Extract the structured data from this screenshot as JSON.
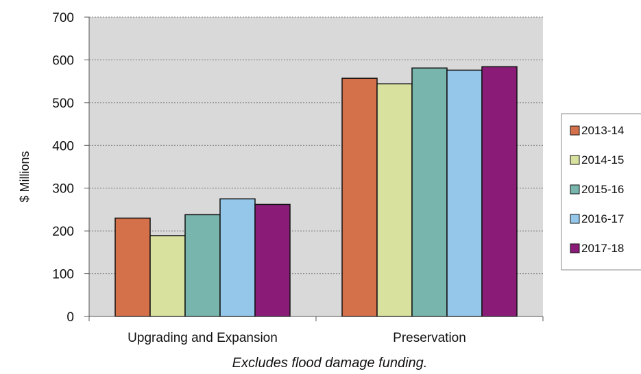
{
  "chart_data": {
    "type": "bar",
    "title": "",
    "xlabel": "",
    "ylabel": "$ Millions",
    "ylim": [
      0,
      700
    ],
    "yticks": [
      0,
      100,
      200,
      300,
      400,
      500,
      600,
      700
    ],
    "grid": "horizontal dotted",
    "legend_position": "right",
    "plot_background": "#d9d9d9",
    "categories": [
      "Upgrading and Expansion",
      "Preservation"
    ],
    "series": [
      {
        "name": "2013-14",
        "color": "#d4704a",
        "values": [
          230,
          557
        ]
      },
      {
        "name": "2014-15",
        "color": "#d9e19f",
        "values": [
          189,
          544
        ]
      },
      {
        "name": "2015-16",
        "color": "#78b5ad",
        "values": [
          238,
          581
        ]
      },
      {
        "name": "2016-17",
        "color": "#95c7eb",
        "values": [
          275,
          576
        ]
      },
      {
        "name": "2017-18",
        "color": "#8a1c78",
        "values": [
          262,
          584
        ]
      }
    ],
    "note": "Excludes flood damage funding."
  }
}
